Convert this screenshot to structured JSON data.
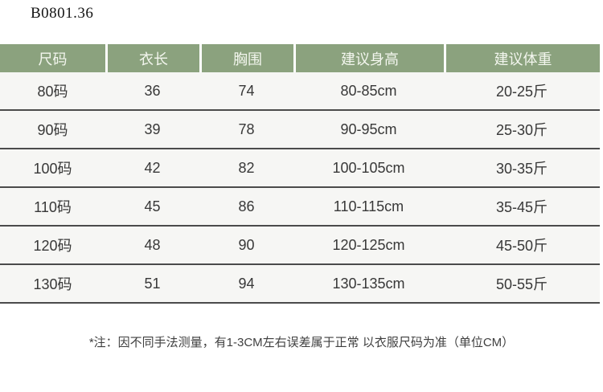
{
  "title": "B0801.36",
  "colors": {
    "header_bg": "#8ba27e",
    "header_text": "#f3f6ee",
    "row_bg": "#f6f6f4",
    "row_divider": "#4b4b4b",
    "body_text": "#383838",
    "page_bg": "#ffffff",
    "title_text": "#141414",
    "footnote_text": "#3f3f3f"
  },
  "chart_data": {
    "type": "table",
    "title": "B0801.36",
    "columns": [
      "尺码",
      "衣长",
      "胸围",
      "建议身高",
      "建议体重"
    ],
    "rows": [
      [
        "80码",
        "36",
        "74",
        "80-85cm",
        "20-25斤"
      ],
      [
        "90码",
        "39",
        "78",
        "90-95cm",
        "25-30斤"
      ],
      [
        "100码",
        "42",
        "82",
        "100-105cm",
        "30-35斤"
      ],
      [
        "110码",
        "45",
        "86",
        "110-115cm",
        "35-45斤"
      ],
      [
        "120码",
        "48",
        "90",
        "120-125cm",
        "45-50斤"
      ],
      [
        "130码",
        "51",
        "94",
        "130-135cm",
        "50-55斤"
      ]
    ],
    "footnote": "*注：因不同手法测量，有1-3CM左右误差属于正常 以衣服尺码为准（单位CM）"
  }
}
